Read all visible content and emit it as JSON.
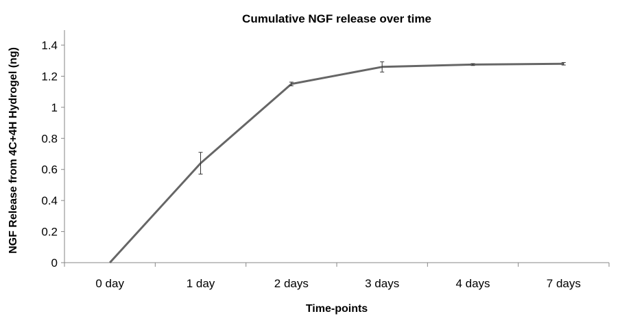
{
  "chart_data": {
    "type": "line",
    "title": "Cumulative NGF release over time",
    "xlabel": "Time-points",
    "ylabel": "NGF Release from 4C+4H Hydrogel (ng)",
    "categories": [
      "0 day",
      "1 day",
      "2 days",
      "3 days",
      "4 days",
      "7 days"
    ],
    "series": [
      {
        "values": [
          0,
          0.64,
          1.15,
          1.26,
          1.275,
          1.28
        ],
        "error": [
          0,
          0.07,
          0.012,
          0.033,
          0.006,
          0.008
        ]
      }
    ],
    "ylim": [
      0,
      1.4
    ],
    "yticks": [
      "0",
      "0.2",
      "0.4",
      "0.6",
      "0.8",
      "1",
      "1.2",
      "1.4"
    ],
    "grid": false,
    "line_color": "#666666"
  }
}
